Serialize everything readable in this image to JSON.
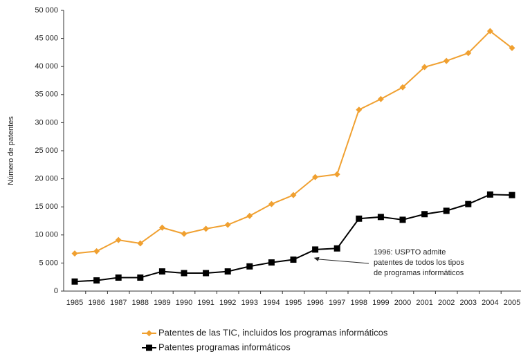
{
  "chart_data": {
    "type": "line",
    "y_label": "Número de patentes",
    "categories": [
      "1985",
      "1986",
      "1987",
      "1988",
      "1989",
      "1990",
      "1991",
      "1992",
      "1993",
      "1994",
      "1995",
      "1996",
      "1997",
      "1998",
      "1999",
      "2000",
      "2001",
      "2002",
      "2003",
      "2004",
      "2005"
    ],
    "series": [
      {
        "name": "Patentes de las TIC, incluidos los programas informáticos",
        "color": "#f0a030",
        "marker": "diamond",
        "values": [
          6700,
          7100,
          9100,
          8500,
          11300,
          10200,
          11100,
          11800,
          13400,
          15500,
          17100,
          20300,
          20800,
          32300,
          34200,
          36300,
          39900,
          41000,
          42400,
          46300,
          43300
        ]
      },
      {
        "name": "Patentes programas informáticos",
        "color": "#000000",
        "marker": "square",
        "values": [
          1700,
          1900,
          2400,
          2400,
          3500,
          3200,
          3200,
          3500,
          4400,
          5100,
          5600,
          7400,
          7600,
          12900,
          13200,
          12700,
          13700,
          14300,
          15500,
          17200,
          17100
        ]
      }
    ],
    "ylim": [
      0,
      50000
    ],
    "yticks": [
      0,
      {
        "value": 5000,
        "label": "5 000"
      },
      {
        "value": 10000,
        "label": "10 000"
      },
      {
        "value": 15000,
        "label": "15 000"
      },
      {
        "value": 20000,
        "label": "20 000"
      },
      {
        "value": 25000,
        "label": "25 000"
      },
      {
        "value": 30000,
        "label": "30 000"
      },
      {
        "value": 35000,
        "label": "35 000"
      },
      {
        "value": 40000,
        "label": "40 000"
      },
      {
        "value": 45000,
        "label": "45 000"
      },
      {
        "value": 50000,
        "label": "50 000"
      }
    ],
    "annotation": {
      "lines": [
        "1996: USPTO admite",
        "patentes de todos los tipos",
        "de programas informáticos"
      ],
      "category": 11
    },
    "grid": false,
    "legend": "bottom"
  }
}
